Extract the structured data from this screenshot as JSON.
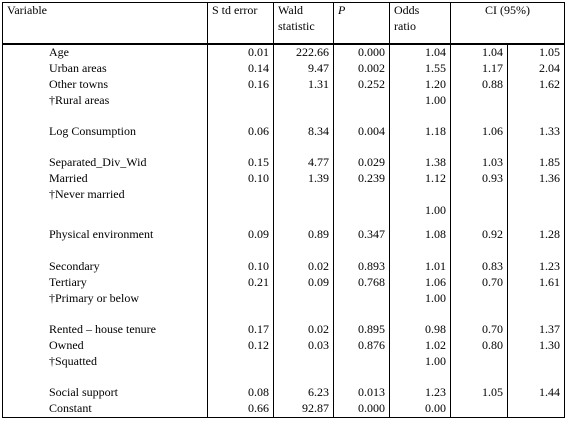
{
  "headers": {
    "variable": "Variable",
    "std_error": "S td error",
    "wald_line1": "Wald",
    "wald_line2": "statistic",
    "p": "P",
    "odds_line1": "Odds",
    "odds_line2": "ratio",
    "ci": "CI (95%)"
  },
  "rows": [
    {
      "variable": "Age",
      "std_error": "0.01",
      "wald": "222.66",
      "p": "0.000",
      "odds_ratio": "1.04",
      "ci_low": "1.04",
      "ci_high": "1.05"
    },
    {
      "variable": "Urban areas",
      "std_error": "0.14",
      "wald": "9.47",
      "p": "0.002",
      "odds_ratio": "1.55",
      "ci_low": "1.17",
      "ci_high": "2.04"
    },
    {
      "variable": "Other towns",
      "std_error": "0.16",
      "wald": "1.31",
      "p": "0.252",
      "odds_ratio": "1.20",
      "ci_low": "0.88",
      "ci_high": "1.62"
    },
    {
      "variable": "†Rural areas",
      "std_error": "",
      "wald": "",
      "p": "",
      "odds_ratio": "1.00",
      "ci_low": "",
      "ci_high": ""
    },
    {
      "variable": "Log Consumption",
      "std_error": "0.06",
      "wald": "8.34",
      "p": "0.004",
      "odds_ratio": "1.18",
      "ci_low": "1.06",
      "ci_high": "1.33"
    },
    {
      "variable": "Separated_Div_Wid",
      "std_error": "0.15",
      "wald": "4.77",
      "p": "0.029",
      "odds_ratio": "1.38",
      "ci_low": "1.03",
      "ci_high": "1.85"
    },
    {
      "variable": "Married",
      "std_error": "0.10",
      "wald": "1.39",
      "p": "0.239",
      "odds_ratio": "1.12",
      "ci_low": "0.93",
      "ci_high": "1.36"
    },
    {
      "variable": "†Never married",
      "std_error": "",
      "wald": "",
      "p": "",
      "odds_ratio": "",
      "ci_low": "",
      "ci_high": ""
    },
    {
      "variable": "",
      "std_error": "",
      "wald": "",
      "p": "",
      "odds_ratio": "1.00",
      "ci_low": "",
      "ci_high": ""
    },
    {
      "variable": "Physical environment",
      "std_error": "0.09",
      "wald": "0.89",
      "p": "0.347",
      "odds_ratio": "1.08",
      "ci_low": "0.92",
      "ci_high": "1.28"
    },
    {
      "variable": "Secondary",
      "std_error": "0.10",
      "wald": "0.02",
      "p": "0.893",
      "odds_ratio": "1.01",
      "ci_low": "0.83",
      "ci_high": "1.23"
    },
    {
      "variable": "Tertiary",
      "std_error": "0.21",
      "wald": "0.09",
      "p": "0.768",
      "odds_ratio": "1.06",
      "ci_low": "0.70",
      "ci_high": "1.61"
    },
    {
      "variable": "†Primary or below",
      "std_error": "",
      "wald": "",
      "p": "",
      "odds_ratio": "1.00",
      "ci_low": "",
      "ci_high": ""
    },
    {
      "variable": "Rented – house tenure",
      "std_error": "0.17",
      "wald": "0.02",
      "p": "0.895",
      "odds_ratio": "0.98",
      "ci_low": "0.70",
      "ci_high": "1.37"
    },
    {
      "variable": "Owned",
      "std_error": "0.12",
      "wald": "0.03",
      "p": "0.876",
      "odds_ratio": "1.02",
      "ci_low": "0.80",
      "ci_high": "1.30"
    },
    {
      "variable": "†Squatted",
      "std_error": "",
      "wald": "",
      "p": "",
      "odds_ratio": "1.00",
      "ci_low": "",
      "ci_high": ""
    },
    {
      "variable": "Social support",
      "std_error": "0.08",
      "wald": "6.23",
      "p": "0.013",
      "odds_ratio": "1.23",
      "ci_low": "1.05",
      "ci_high": "1.44"
    },
    {
      "variable": "Constant",
      "std_error": "0.66",
      "wald": "92.87",
      "p": "0.000",
      "odds_ratio": "0.00",
      "ci_low": "",
      "ci_high": ""
    }
  ]
}
